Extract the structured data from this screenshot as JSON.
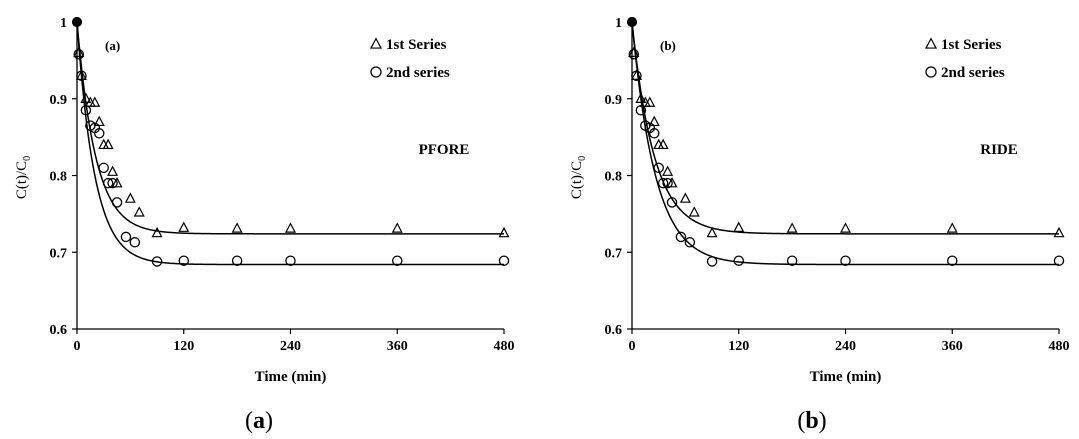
{
  "chart_data": [
    {
      "type": "scatter",
      "panel_label": "(a)",
      "model_label": "PFORE",
      "caption": "a",
      "xlabel": "Time (min)",
      "ylabel_main": "C(t)/C",
      "ylabel_sub": "0",
      "xlim": [
        0,
        480
      ],
      "ylim": [
        0.6,
        1.0
      ],
      "xticks": [
        0,
        120,
        240,
        360,
        480
      ],
      "yticks": [
        0.6,
        0.7,
        0.8,
        0.9,
        1.0
      ],
      "ytick_labels": [
        "0.6",
        "0.7",
        "0.8",
        "0.9",
        "1"
      ],
      "legend_position": "top-right",
      "series": [
        {
          "name": "1st Series",
          "marker": "triangle",
          "points": [
            [
              0,
              1.0
            ],
            [
              2,
              0.96
            ],
            [
              5,
              0.93
            ],
            [
              10,
              0.9
            ],
            [
              15,
              0.895
            ],
            [
              20,
              0.895
            ],
            [
              25,
              0.87
            ],
            [
              30,
              0.84
            ],
            [
              35,
              0.84
            ],
            [
              40,
              0.805
            ],
            [
              45,
              0.79
            ],
            [
              60,
              0.77
            ],
            [
              70,
              0.752
            ],
            [
              90,
              0.725
            ],
            [
              120,
              0.732
            ],
            [
              180,
              0.731
            ],
            [
              240,
              0.731
            ],
            [
              360,
              0.731
            ],
            [
              480,
              0.725
            ]
          ],
          "fit": {
            "c_inf": 0.724,
            "k": 0.048
          }
        },
        {
          "name": "2nd series",
          "marker": "circle",
          "points": [
            [
              0,
              1.0
            ],
            [
              2,
              0.958
            ],
            [
              5,
              0.93
            ],
            [
              10,
              0.885
            ],
            [
              15,
              0.865
            ],
            [
              20,
              0.862
            ],
            [
              25,
              0.855
            ],
            [
              30,
              0.81
            ],
            [
              35,
              0.79
            ],
            [
              40,
              0.79
            ],
            [
              45,
              0.765
            ],
            [
              55,
              0.72
            ],
            [
              65,
              0.713
            ],
            [
              90,
              0.688
            ],
            [
              120,
              0.689
            ],
            [
              180,
              0.689
            ],
            [
              240,
              0.689
            ],
            [
              360,
              0.689
            ],
            [
              480,
              0.689
            ]
          ],
          "fit": {
            "c_inf": 0.684,
            "k": 0.05
          }
        }
      ]
    },
    {
      "type": "scatter",
      "panel_label": "(b)",
      "model_label": "RIDE",
      "caption": "b",
      "xlabel": "Time (min)",
      "ylabel_main": "C(t)/C",
      "ylabel_sub": "0",
      "xlim": [
        0,
        480
      ],
      "ylim": [
        0.6,
        1.0
      ],
      "xticks": [
        0,
        120,
        240,
        360,
        480
      ],
      "yticks": [
        0.6,
        0.7,
        0.8,
        0.9,
        1.0
      ],
      "ytick_labels": [
        "0.6",
        "0.7",
        "0.8",
        "0.9",
        "1"
      ],
      "legend_position": "top-right",
      "series": [
        {
          "name": "1st Series",
          "marker": "triangle",
          "points": [
            [
              0,
              1.0
            ],
            [
              2,
              0.96
            ],
            [
              5,
              0.93
            ],
            [
              10,
              0.9
            ],
            [
              15,
              0.895
            ],
            [
              20,
              0.895
            ],
            [
              25,
              0.87
            ],
            [
              30,
              0.84
            ],
            [
              35,
              0.84
            ],
            [
              40,
              0.805
            ],
            [
              45,
              0.79
            ],
            [
              60,
              0.77
            ],
            [
              70,
              0.752
            ],
            [
              90,
              0.725
            ],
            [
              120,
              0.732
            ],
            [
              180,
              0.731
            ],
            [
              240,
              0.731
            ],
            [
              360,
              0.731
            ],
            [
              480,
              0.725
            ]
          ],
          "fit": {
            "c_inf": 0.724,
            "k": 0.04
          }
        },
        {
          "name": "2nd series",
          "marker": "circle",
          "points": [
            [
              0,
              1.0
            ],
            [
              2,
              0.958
            ],
            [
              5,
              0.93
            ],
            [
              10,
              0.885
            ],
            [
              15,
              0.865
            ],
            [
              20,
              0.862
            ],
            [
              25,
              0.855
            ],
            [
              30,
              0.81
            ],
            [
              35,
              0.79
            ],
            [
              40,
              0.79
            ],
            [
              45,
              0.765
            ],
            [
              55,
              0.72
            ],
            [
              65,
              0.713
            ],
            [
              90,
              0.688
            ],
            [
              120,
              0.689
            ],
            [
              180,
              0.689
            ],
            [
              240,
              0.689
            ],
            [
              360,
              0.689
            ],
            [
              480,
              0.689
            ]
          ],
          "fit": {
            "c_inf": 0.684,
            "k": 0.038
          }
        }
      ]
    }
  ]
}
